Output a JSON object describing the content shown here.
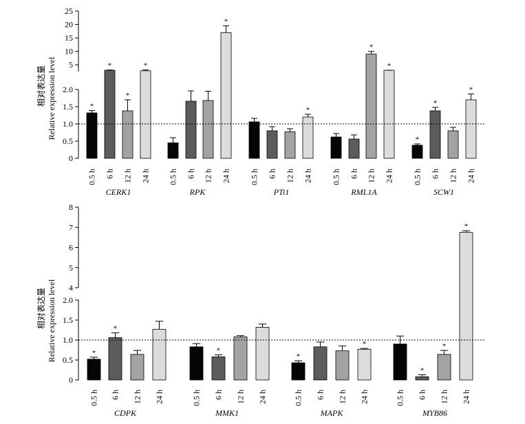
{
  "chart_data": [
    {
      "type": "bar",
      "ylabel_cn": "相对表达量",
      "ylabel_en": "Relative expression level",
      "time_points": [
        "0.5 h",
        "6 h",
        "12 h",
        "24 h"
      ],
      "bar_colors": [
        "#050505",
        "#5c5c5c",
        "#a3a3a3",
        "#dcdcdc"
      ],
      "lower_axis": {
        "range": [
          0,
          2.0
        ],
        "ticks": [
          "0",
          "0.5",
          "1.0",
          "1.5",
          "2.0"
        ]
      },
      "upper_axis": {
        "range": [
          2.5,
          25
        ],
        "ticks": [
          "5",
          "10",
          "15",
          "20",
          "25"
        ]
      },
      "reference_line": 1.0,
      "genes": [
        {
          "name": "CERK1",
          "values": [
            1.32,
            3.0,
            1.38,
            2.8
          ],
          "errors": [
            0.07,
            0.1,
            0.32,
            0.3
          ],
          "significant": [
            true,
            true,
            true,
            true
          ]
        },
        {
          "name": "RPK",
          "values": [
            0.45,
            1.66,
            1.68,
            17.0
          ],
          "errors": [
            0.15,
            0.3,
            0.27,
            2.5
          ],
          "significant": [
            false,
            false,
            false,
            true
          ]
        },
        {
          "name": "PTi1",
          "values": [
            1.06,
            0.8,
            0.77,
            1.2
          ],
          "errors": [
            0.1,
            0.12,
            0.09,
            0.08
          ],
          "significant": [
            false,
            false,
            false,
            true
          ]
        },
        {
          "name": "RML1A",
          "values": [
            0.62,
            0.56,
            9.0,
            3.0
          ],
          "errors": [
            0.1,
            0.12,
            1.0,
            0.0
          ],
          "significant": [
            false,
            false,
            true,
            true
          ]
        },
        {
          "name": "SCW1",
          "values": [
            0.38,
            1.38,
            0.8,
            1.7
          ],
          "errors": [
            0.04,
            0.1,
            0.1,
            0.17
          ],
          "significant": [
            true,
            true,
            false,
            true
          ]
        }
      ]
    },
    {
      "type": "bar",
      "ylabel_cn": "相对表达量",
      "ylabel_en": "Relative expression level",
      "time_points": [
        "0.5 h",
        "6 h",
        "12 h",
        "24 h"
      ],
      "bar_colors": [
        "#050505",
        "#5c5c5c",
        "#a3a3a3",
        "#dcdcdc"
      ],
      "lower_axis": {
        "range": [
          0,
          2.0
        ],
        "ticks": [
          "0",
          "0.5",
          "1.0",
          "1.5",
          "2.0"
        ]
      },
      "upper_axis": {
        "range": [
          4,
          8
        ],
        "ticks": [
          "4",
          "5",
          "6",
          "7",
          "8"
        ]
      },
      "reference_line": 1.0,
      "genes": [
        {
          "name": "CDPK",
          "values": [
            0.52,
            1.06,
            0.64,
            1.27
          ],
          "errors": [
            0.05,
            0.12,
            0.1,
            0.2
          ],
          "significant": [
            true,
            true,
            false,
            false
          ]
        },
        {
          "name": "MMK1",
          "values": [
            0.83,
            0.58,
            1.08,
            1.32
          ],
          "errors": [
            0.08,
            0.05,
            0.03,
            0.08
          ],
          "significant": [
            false,
            true,
            false,
            false
          ]
        },
        {
          "name": "MAPK",
          "values": [
            0.43,
            0.83,
            0.73,
            0.77
          ],
          "errors": [
            0.05,
            0.12,
            0.12,
            0.02
          ],
          "significant": [
            true,
            false,
            false,
            true
          ]
        },
        {
          "name": "MYB86",
          "values": [
            0.9,
            0.08,
            0.64,
            6.75
          ],
          "errors": [
            0.2,
            0.05,
            0.1,
            0.08
          ],
          "significant": [
            false,
            true,
            true,
            true
          ]
        }
      ]
    }
  ]
}
